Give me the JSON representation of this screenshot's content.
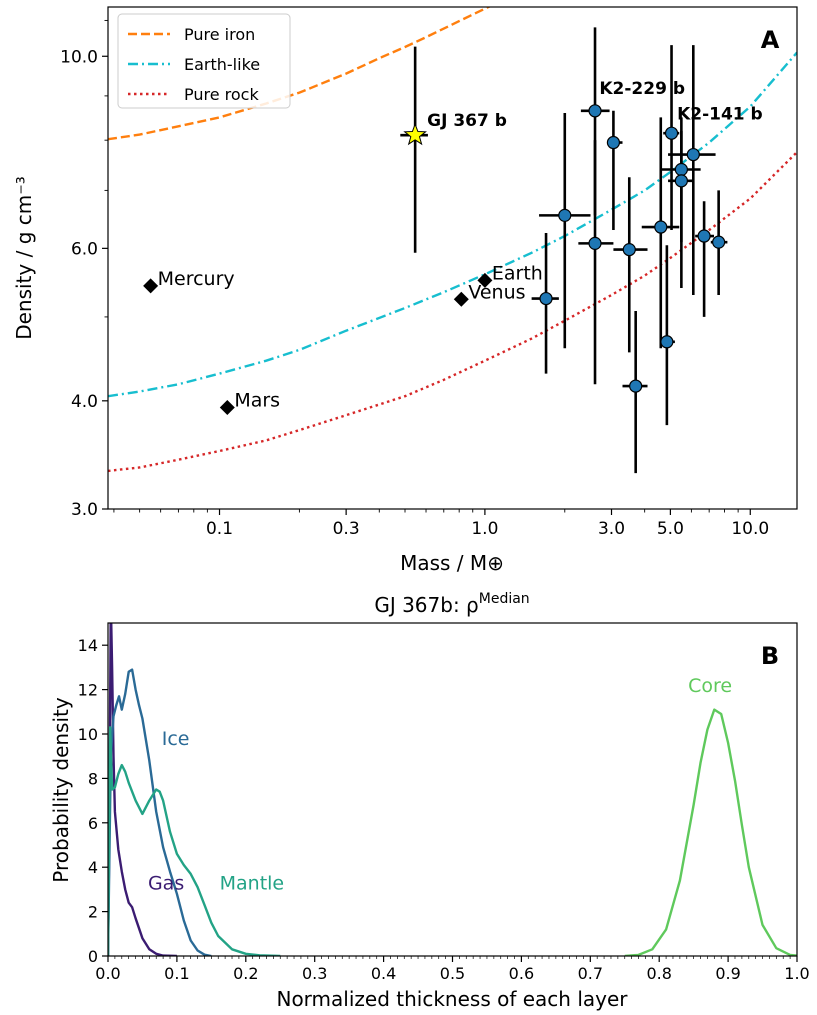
{
  "colors": {
    "iron": "#ff7f0e",
    "earthlike": "#17becf",
    "rock": "#d62728",
    "exoplanet": "#1f77b4",
    "star": "#ffff00",
    "gas": "#3b1c72",
    "ice": "#2a6a96",
    "mantle": "#23a386",
    "core": "#5fc95c"
  },
  "chart_data": [
    {
      "type": "scatter",
      "panel_label": "A",
      "xlabel": "Mass / M⊕",
      "ylabel": "Density / g cm⁻³",
      "xscale": "log",
      "yscale": "log",
      "xlim": [
        0.038,
        15
      ],
      "ylim": [
        3.0,
        11.4
      ],
      "xticks": [
        0.1,
        0.3,
        1.0,
        3.0,
        5.0,
        10.0
      ],
      "xtick_labels": [
        "0.1",
        "0.3",
        "1.0",
        "3.0",
        "5.0",
        "10.0"
      ],
      "yticks": [
        3.0,
        4.0,
        6.0,
        10.0
      ],
      "ytick_labels": [
        "3.0",
        "4.0",
        "6.0",
        "10.0"
      ],
      "legend": {
        "position": "top-left",
        "entries": [
          "Pure iron",
          "Earth-like",
          "Pure rock"
        ]
      },
      "model_curves": [
        {
          "name": "Pure iron",
          "style": "dashed",
          "color": "iron",
          "x": [
            0.038,
            0.05,
            0.07,
            0.1,
            0.15,
            0.2,
            0.3,
            0.4,
            0.5,
            0.6,
            0.8,
            1.0,
            1.3,
            1.6,
            2.0,
            2.5
          ],
          "y": [
            8.02,
            8.12,
            8.3,
            8.5,
            8.82,
            9.08,
            9.55,
            9.95,
            10.25,
            10.52,
            10.98,
            11.35,
            11.8,
            12.2,
            12.6,
            13.1
          ]
        },
        {
          "name": "Earth-like",
          "style": "dashdot",
          "color": "earthlike",
          "x": [
            0.038,
            0.05,
            0.07,
            0.1,
            0.15,
            0.2,
            0.3,
            0.5,
            0.7,
            1.0,
            1.5,
            2.0,
            3.0,
            4.0,
            5.0,
            7.0,
            10.0,
            15.0
          ],
          "y": [
            4.05,
            4.1,
            4.18,
            4.3,
            4.45,
            4.58,
            4.82,
            5.12,
            5.34,
            5.6,
            5.93,
            6.2,
            6.65,
            7.0,
            7.35,
            7.95,
            8.75,
            10.1
          ]
        },
        {
          "name": "Pure rock",
          "style": "dotted",
          "color": "rock",
          "x": [
            0.038,
            0.05,
            0.07,
            0.1,
            0.15,
            0.2,
            0.3,
            0.5,
            0.7,
            1.0,
            1.5,
            2.0,
            3.0,
            4.0,
            5.0,
            7.0,
            10.0,
            15.0
          ],
          "y": [
            3.32,
            3.35,
            3.42,
            3.5,
            3.6,
            3.7,
            3.85,
            4.05,
            4.23,
            4.45,
            4.72,
            4.95,
            5.3,
            5.58,
            5.85,
            6.3,
            6.85,
            7.75
          ]
        }
      ],
      "solar_system": [
        {
          "name": "Mercury",
          "x": 0.055,
          "y": 5.43
        },
        {
          "name": "Mars",
          "x": 0.107,
          "y": 3.93
        },
        {
          "name": "Venus",
          "x": 0.815,
          "y": 5.24
        },
        {
          "name": "Earth",
          "x": 1.0,
          "y": 5.51
        }
      ],
      "target": {
        "name": "GJ 367 b",
        "x": 0.546,
        "y": 8.106,
        "y_low": 5.93,
        "y_high": 10.26,
        "x_low": 0.48,
        "x_high": 0.61
      },
      "exoplanets": [
        {
          "x": 1.7,
          "y": 5.25,
          "xl": 1.5,
          "xh": 1.9,
          "yl": 4.3,
          "yh": 6.25
        },
        {
          "x": 2.0,
          "y": 6.55,
          "xl": 1.6,
          "xh": 2.5,
          "yl": 4.6,
          "yh": 8.6
        },
        {
          "x": 2.6,
          "y": 8.65,
          "xl": 2.3,
          "xh": 2.95,
          "yl": 6.55,
          "yh": 10.8
        },
        {
          "x": 2.6,
          "y": 6.08,
          "xl": 2.25,
          "xh": 3.05,
          "yl": 4.18,
          "yh": 8.0
        },
        {
          "x": 3.05,
          "y": 7.95,
          "xl": 2.9,
          "xh": 3.3,
          "yl": 6.3,
          "yh": 8.65
        },
        {
          "x": 3.5,
          "y": 5.98,
          "xl": 3.05,
          "xh": 4.1,
          "yl": 4.55,
          "yh": 7.25
        },
        {
          "x": 3.7,
          "y": 4.16,
          "xl": 3.3,
          "xh": 4.1,
          "yl": 3.3,
          "yh": 5.08
        },
        {
          "x": 4.6,
          "y": 6.35,
          "xl": 3.9,
          "xh": 5.4,
          "yl": 4.6,
          "yh": 8.5
        },
        {
          "x": 4.85,
          "y": 4.68,
          "xl": 4.55,
          "xh": 5.2,
          "yl": 3.75,
          "yh": 6.05
        },
        {
          "x": 5.05,
          "y": 8.15,
          "xl": 4.7,
          "xh": 5.4,
          "yl": 6.3,
          "yh": 10.3
        },
        {
          "x": 5.5,
          "y": 7.4,
          "xl": 4.6,
          "xh": 6.5,
          "yl": 6.1,
          "yh": 8.5
        },
        {
          "x": 5.5,
          "y": 7.18,
          "xl": 4.9,
          "xh": 6.1,
          "yl": 5.4,
          "yh": 8.2
        },
        {
          "x": 6.1,
          "y": 7.7,
          "xl": 4.9,
          "xh": 7.4,
          "yl": 5.3,
          "yh": 10.3
        },
        {
          "x": 6.7,
          "y": 6.2,
          "xl": 6.2,
          "xh": 7.3,
          "yl": 5.0,
          "yh": 6.8
        },
        {
          "x": 7.6,
          "y": 6.1,
          "xl": 7.1,
          "xh": 8.2,
          "yl": 5.3,
          "yh": 7.0
        }
      ],
      "annotations": [
        {
          "text": "K2-229 b",
          "x": 2.7,
          "y": 9.05
        },
        {
          "text": "K2-141 b",
          "x": 5.3,
          "y": 8.45
        }
      ]
    },
    {
      "type": "line",
      "panel_label": "B",
      "title": "GJ 367b: ρ",
      "title_superscript": "Median",
      "xlabel": "Normalized thickness of each layer",
      "ylabel": "Probability density",
      "xlim": [
        0.0,
        1.0
      ],
      "ylim": [
        0,
        15
      ],
      "xticks": [
        0.0,
        0.1,
        0.2,
        0.3,
        0.4,
        0.5,
        0.6,
        0.7,
        0.8,
        0.9,
        1.0
      ],
      "xtick_labels": [
        "0.0",
        "0.1",
        "0.2",
        "0.3",
        "0.4",
        "0.5",
        "0.6",
        "0.7",
        "0.8",
        "0.9",
        "1.0"
      ],
      "yticks": [
        0,
        2,
        4,
        6,
        8,
        10,
        12,
        14
      ],
      "ytick_labels": [
        "0",
        "2",
        "4",
        "6",
        "8",
        "10",
        "12",
        "14"
      ],
      "series": [
        {
          "name": "Gas",
          "color": "gas",
          "x": [
            0.0,
            0.002,
            0.004,
            0.006,
            0.008,
            0.01,
            0.015,
            0.02,
            0.025,
            0.03,
            0.035,
            0.04,
            0.05,
            0.06,
            0.07,
            0.08,
            0.1
          ],
          "y": [
            0.0,
            6.0,
            16.0,
            13.0,
            9.0,
            6.5,
            4.8,
            3.8,
            3.0,
            2.4,
            2.2,
            1.7,
            0.8,
            0.3,
            0.1,
            0.02,
            0.0
          ],
          "label": {
            "x": 0.058,
            "y": 3.0
          }
        },
        {
          "name": "Ice",
          "color": "ice",
          "x": [
            0.0,
            0.004,
            0.008,
            0.012,
            0.016,
            0.02,
            0.025,
            0.03,
            0.035,
            0.04,
            0.045,
            0.05,
            0.06,
            0.07,
            0.08,
            0.09,
            0.1,
            0.11,
            0.12,
            0.13,
            0.14,
            0.15
          ],
          "y": [
            0.0,
            9.0,
            10.8,
            11.3,
            11.7,
            11.1,
            11.8,
            12.8,
            12.9,
            12.0,
            11.3,
            10.7,
            8.8,
            6.5,
            4.9,
            3.8,
            2.8,
            1.6,
            0.7,
            0.25,
            0.06,
            0.0
          ],
          "label": {
            "x": 0.078,
            "y": 9.5
          }
        },
        {
          "name": "Mantle",
          "color": "mantle",
          "x": [
            0.0,
            0.003,
            0.006,
            0.01,
            0.015,
            0.02,
            0.025,
            0.03,
            0.04,
            0.05,
            0.06,
            0.07,
            0.075,
            0.08,
            0.09,
            0.1,
            0.11,
            0.12,
            0.13,
            0.14,
            0.15,
            0.16,
            0.18,
            0.2,
            0.22,
            0.25
          ],
          "y": [
            0.0,
            10.3,
            7.5,
            7.6,
            8.2,
            8.6,
            8.3,
            7.8,
            7.0,
            6.4,
            7.0,
            7.5,
            7.4,
            7.0,
            5.6,
            4.6,
            4.1,
            3.7,
            3.1,
            2.3,
            1.5,
            0.9,
            0.3,
            0.1,
            0.03,
            0.0
          ],
          "label": {
            "x": 0.162,
            "y": 3.0
          }
        },
        {
          "name": "Core",
          "color": "core",
          "x": [
            0.75,
            0.77,
            0.79,
            0.81,
            0.83,
            0.85,
            0.86,
            0.87,
            0.88,
            0.89,
            0.9,
            0.91,
            0.92,
            0.93,
            0.95,
            0.97,
            0.99,
            1.0
          ],
          "y": [
            0.0,
            0.05,
            0.3,
            1.2,
            3.4,
            6.8,
            8.7,
            10.2,
            11.1,
            10.9,
            9.6,
            7.9,
            5.9,
            4.0,
            1.4,
            0.35,
            0.05,
            0.02
          ],
          "label": {
            "x": 0.842,
            "y": 11.9
          }
        }
      ]
    }
  ]
}
